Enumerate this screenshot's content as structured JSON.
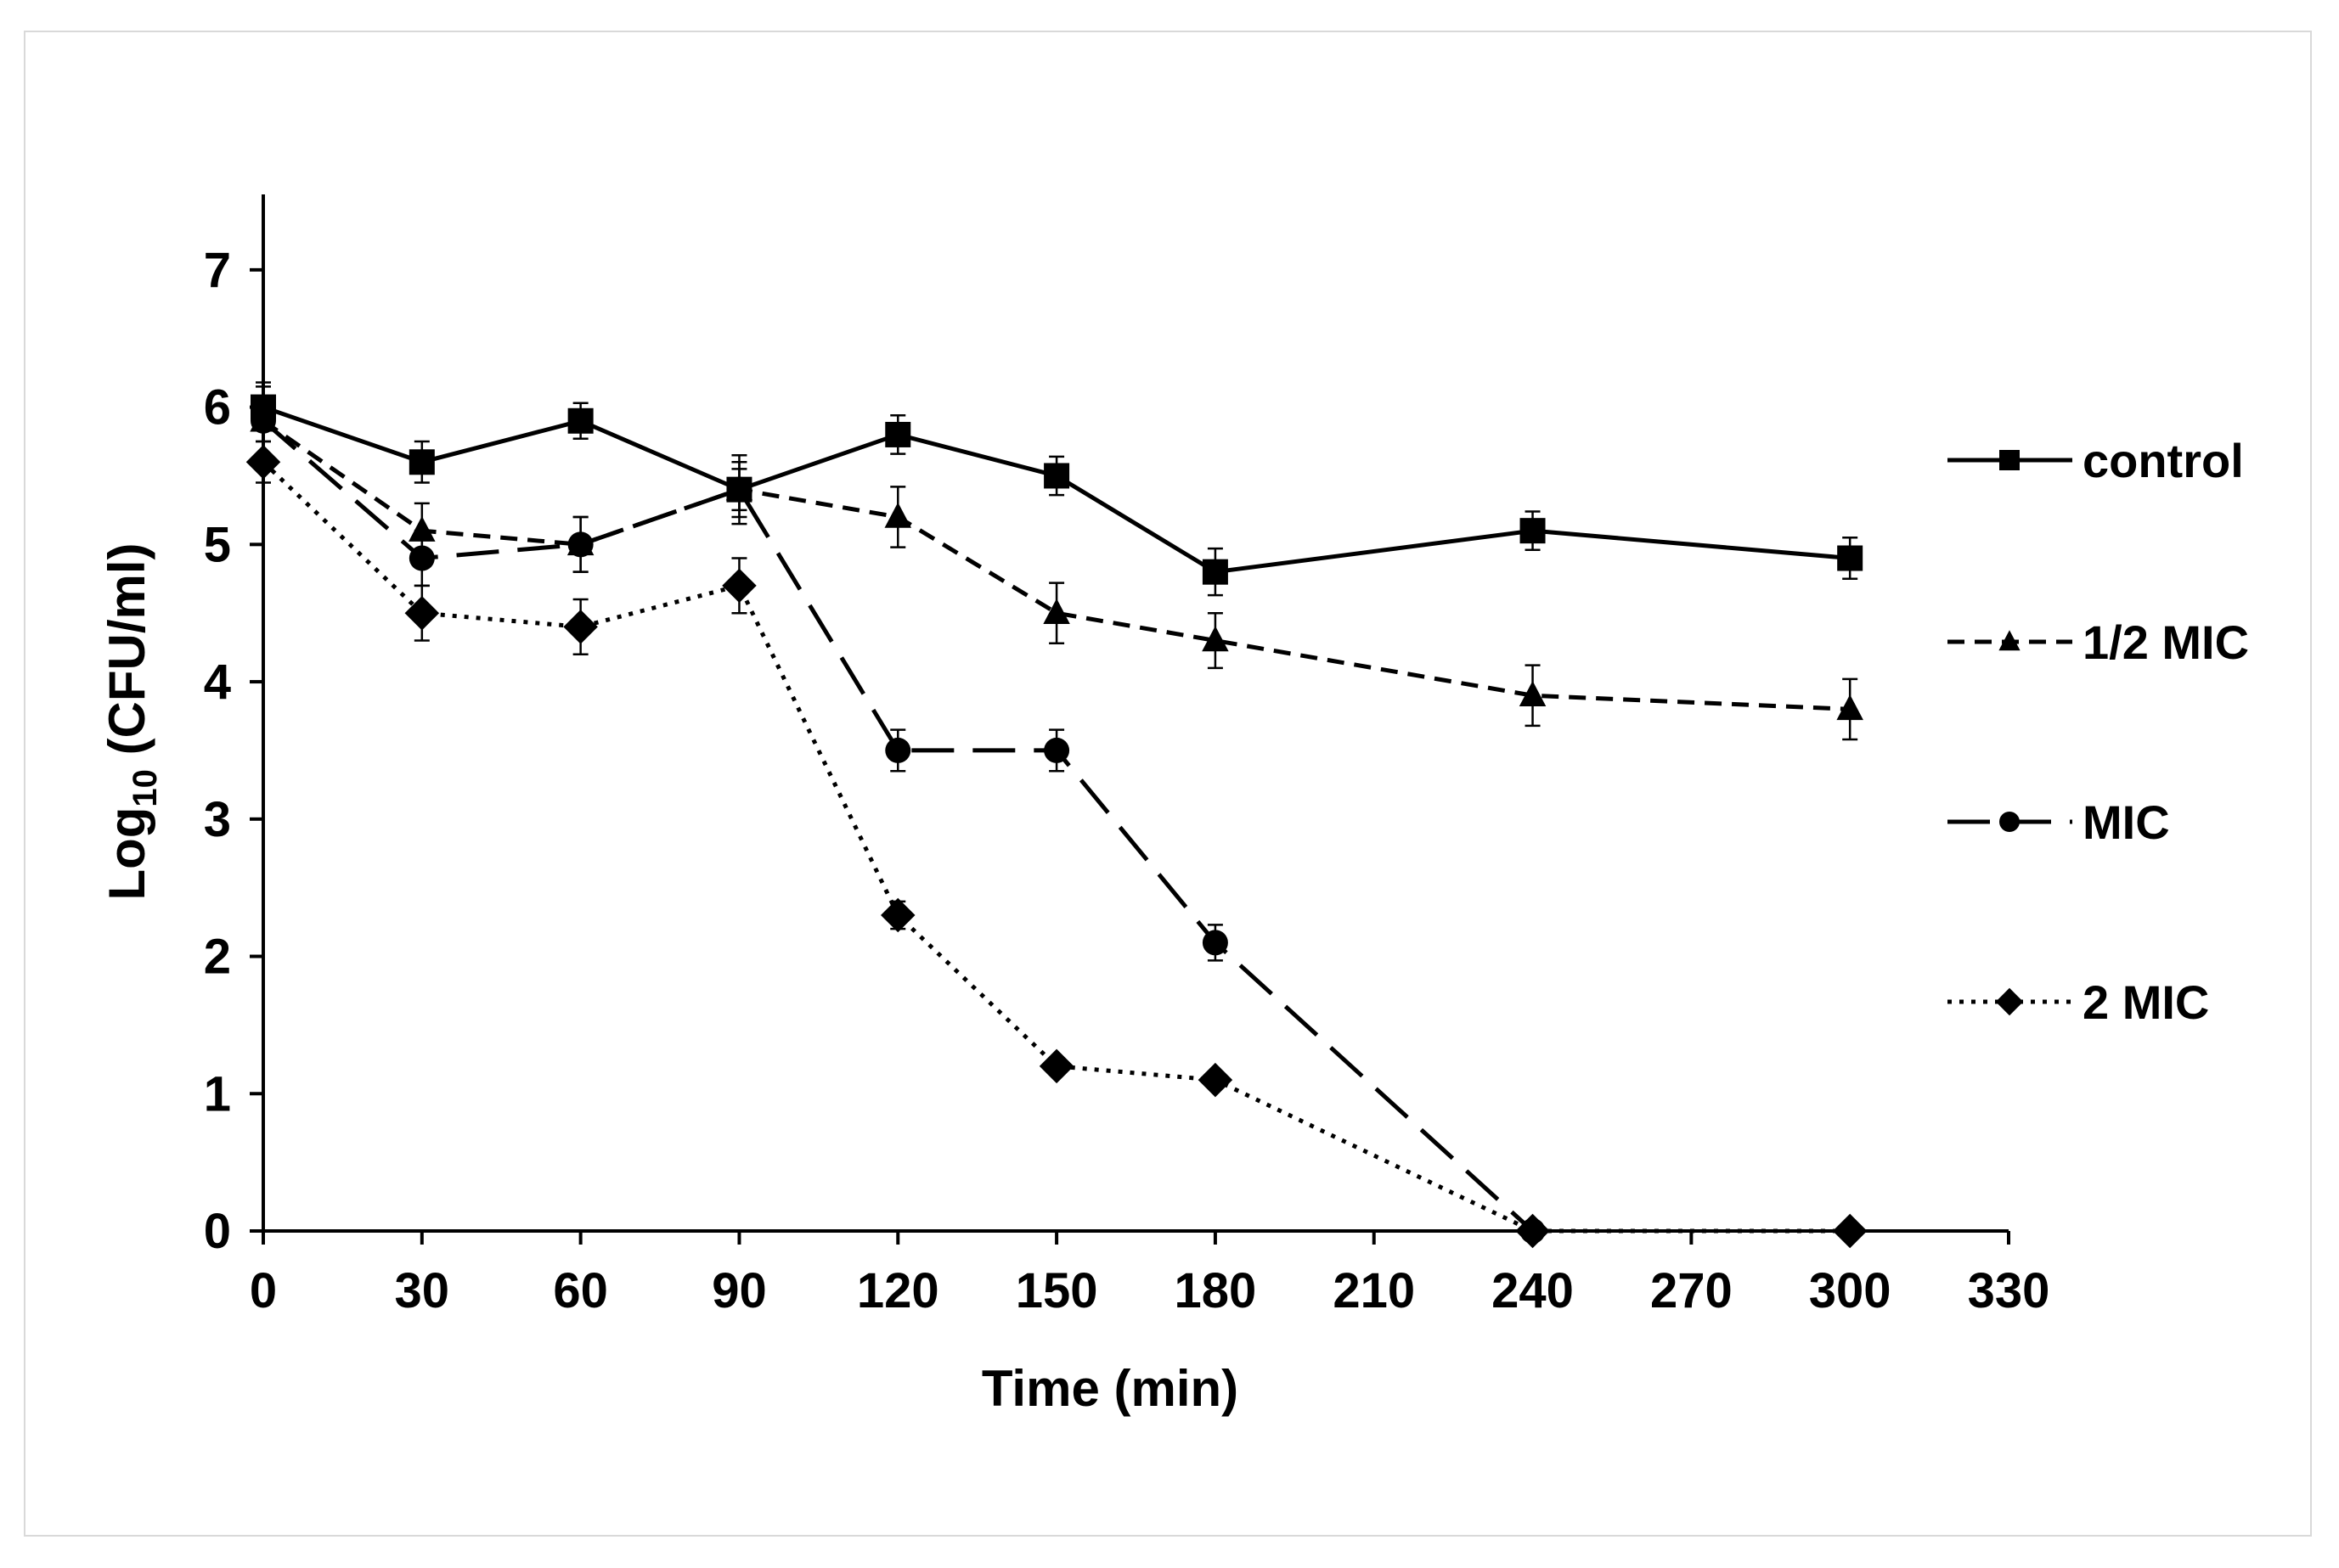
{
  "chart_data": {
    "type": "line",
    "title": "",
    "xlabel": "Time (min)",
    "ylabel_main": "Log",
    "ylabel_sub": "10",
    "ylabel_rest": " (CFU/ml)",
    "xlim": [
      0,
      330
    ],
    "ylim": [
      0,
      7.5
    ],
    "x_ticks": [
      0,
      30,
      60,
      90,
      120,
      150,
      180,
      210,
      240,
      270,
      300,
      330
    ],
    "y_ticks": [
      0,
      1,
      2,
      3,
      4,
      5,
      6,
      7
    ],
    "grid": false,
    "legend_position": "right",
    "series": [
      {
        "name": "control",
        "marker": "square",
        "dash": "solid",
        "x": [
          0,
          30,
          60,
          90,
          120,
          150,
          180,
          240,
          300
        ],
        "y": [
          6.0,
          5.6,
          5.9,
          5.4,
          5.8,
          5.5,
          4.8,
          5.1,
          4.9
        ],
        "err": [
          0.15,
          0.15,
          0.13,
          0.25,
          0.14,
          0.14,
          0.17,
          0.14,
          0.15
        ]
      },
      {
        "name": "1/2 MIC",
        "marker": "triangle",
        "dash": "short-dash",
        "x": [
          0,
          30,
          60,
          90,
          120,
          150,
          180,
          240,
          300
        ],
        "y": [
          5.9,
          5.1,
          5.0,
          5.4,
          5.2,
          4.5,
          4.3,
          3.9,
          3.8
        ],
        "err": [
          0.28,
          0.2,
          0.2,
          0.2,
          0.22,
          0.22,
          0.2,
          0.22,
          0.22
        ]
      },
      {
        "name": "MIC",
        "marker": "circle",
        "dash": "long-dash",
        "x": [
          0,
          30,
          60,
          90,
          120,
          150,
          180,
          240
        ],
        "y": [
          5.9,
          4.9,
          5.0,
          5.4,
          3.5,
          3.5,
          2.1,
          0.0
        ],
        "err": [
          0.15,
          0.2,
          0.2,
          0.15,
          0.15,
          0.15,
          0.13,
          0.0
        ]
      },
      {
        "name": "2 MIC",
        "marker": "diamond",
        "dash": "dotted",
        "x": [
          0,
          30,
          60,
          90,
          120,
          150,
          180,
          240,
          300
        ],
        "y": [
          5.6,
          4.5,
          4.4,
          4.7,
          2.3,
          1.2,
          1.1,
          0.0,
          0.0
        ],
        "err": [
          0.15,
          0.2,
          0.2,
          0.2,
          0.1,
          0.05,
          0.05,
          0.0,
          0.0
        ]
      }
    ]
  }
}
